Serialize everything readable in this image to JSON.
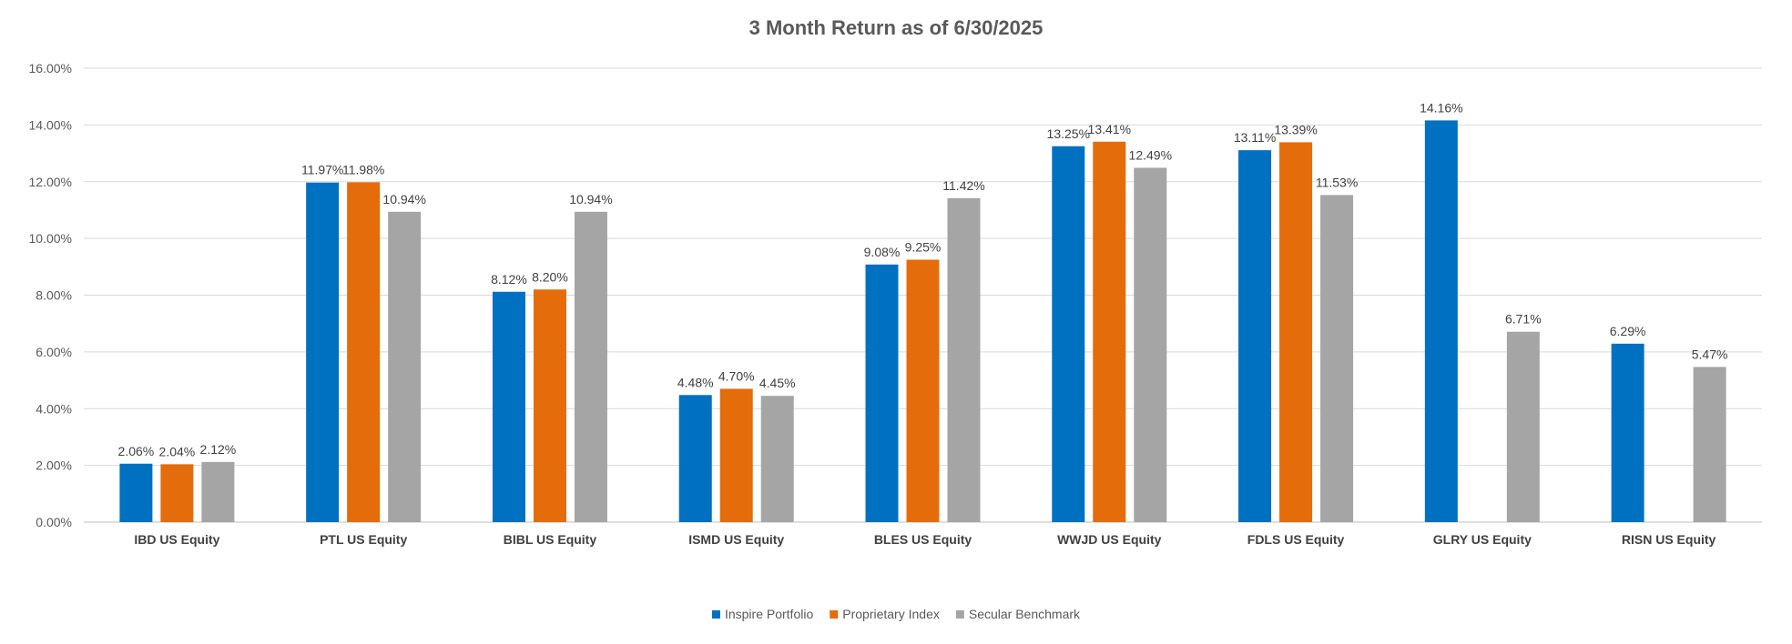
{
  "chart_data": {
    "type": "bar",
    "title": "3 Month Return as of 6/30/2025",
    "xlabel": "",
    "ylabel": "",
    "ylim": [
      0,
      16
    ],
    "y_ticks": [
      "0.00%",
      "2.00%",
      "4.00%",
      "6.00%",
      "8.00%",
      "10.00%",
      "12.00%",
      "14.00%",
      "16.00%"
    ],
    "grid": true,
    "legend_position": "bottom",
    "categories": [
      "IBD US Equity",
      "PTL US Equity",
      "BIBL US Equity",
      "ISMD US Equity",
      "BLES US Equity",
      "WWJD US Equity",
      "FDLS US Equity",
      "GLRY US Equity",
      "RISN US Equity"
    ],
    "series": [
      {
        "name": "Inspire Portfolio",
        "color": "#0070C0",
        "values": [
          2.06,
          11.97,
          8.12,
          4.48,
          9.08,
          13.25,
          13.11,
          14.16,
          6.29
        ],
        "labels": [
          "2.06%",
          "11.97%",
          "8.12%",
          "4.48%",
          "9.08%",
          "13.25%",
          "13.11%",
          "14.16%",
          "6.29%"
        ]
      },
      {
        "name": "Proprietary Index",
        "color": "#E46C0A",
        "values": [
          2.04,
          11.98,
          8.2,
          4.7,
          9.25,
          13.41,
          13.39,
          null,
          null
        ],
        "labels": [
          "2.04%",
          "11.98%",
          "8.20%",
          "4.70%",
          "9.25%",
          "13.41%",
          "13.39%",
          null,
          null
        ]
      },
      {
        "name": "Secular Benchmark",
        "color": "#A5A5A5",
        "values": [
          2.12,
          10.94,
          10.94,
          4.45,
          11.42,
          12.49,
          11.53,
          6.71,
          5.47
        ],
        "labels": [
          "2.12%",
          "10.94%",
          "10.94%",
          "4.45%",
          "11.42%",
          "12.49%",
          "11.53%",
          "6.71%",
          "5.47%"
        ]
      }
    ]
  }
}
